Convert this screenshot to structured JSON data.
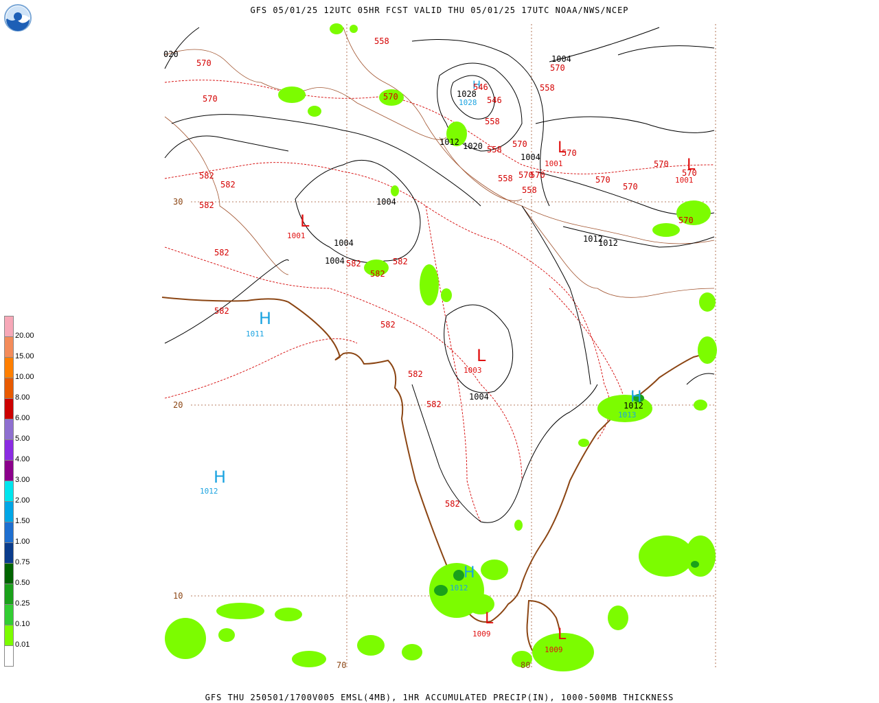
{
  "header": {
    "title": "GFS 05/01/25 12UTC 05HR FCST VALID THU 05/01/25 17UTC NOAA/NWS/NCEP",
    "logo_text": "NOAA"
  },
  "footer": {
    "text": "GFS THU 250501/1700V005 EMSL(4MB), 1HR ACCUMULATED PRECIP(IN), 1000-500MB THICKNESS"
  },
  "colors": {
    "coast": "#8b4513",
    "thickness": "#d40000",
    "pressure": "#000000",
    "high": "#1aa3e0",
    "low": "#e01010",
    "grid": "#a0522d",
    "precip_light": "#7cfc00"
  },
  "legend": {
    "levels": [
      {
        "label": "20.00",
        "color": "#f7a8b8"
      },
      {
        "label": "15.00",
        "color": "#f48c5a"
      },
      {
        "label": "10.00",
        "color": "#ff7f00"
      },
      {
        "label": "8.00",
        "color": "#e85a00"
      },
      {
        "label": "6.00",
        "color": "#cc0000"
      },
      {
        "label": "5.00",
        "color": "#8e6fd0"
      },
      {
        "label": "4.00",
        "color": "#8a2be2"
      },
      {
        "label": "3.00",
        "color": "#8b008b"
      },
      {
        "label": "2.00",
        "color": "#00e5ee"
      },
      {
        "label": "1.50",
        "color": "#00a6e6"
      },
      {
        "label": "1.00",
        "color": "#1e6fd0"
      },
      {
        "label": "0.75",
        "color": "#0a3c8c"
      },
      {
        "label": "0.50",
        "color": "#006400"
      },
      {
        "label": "0.25",
        "color": "#1aa11a"
      },
      {
        "label": "0.10",
        "color": "#32cd32"
      },
      {
        "label": "0.01",
        "color": "#7cfc00"
      },
      {
        "label": "",
        "color": "#ffffff"
      }
    ]
  },
  "grid_labels": {
    "lat": [
      "30",
      "20",
      "10"
    ],
    "lon": [
      "70",
      "80"
    ],
    "corner": "020"
  },
  "pressure_centers": [
    {
      "type": "H",
      "value": "1011"
    },
    {
      "type": "H",
      "value": "1012"
    },
    {
      "type": "H",
      "value": "1013"
    },
    {
      "type": "H",
      "value": "1012"
    },
    {
      "type": "H",
      "value": "1028"
    },
    {
      "type": "L",
      "value": "1001"
    },
    {
      "type": "L",
      "value": "1003"
    },
    {
      "type": "L",
      "value": "1001"
    },
    {
      "type": "L",
      "value": "1001"
    },
    {
      "type": "L",
      "value": "1009"
    },
    {
      "type": "L",
      "value": "1009"
    }
  ],
  "isobar_labels": [
    "1004",
    "1004",
    "1004",
    "1004",
    "1004",
    "1004",
    "1012",
    "1012",
    "1012",
    "1020",
    "1028",
    "1012",
    "1004"
  ],
  "thickness_labels": [
    "558",
    "570",
    "570",
    "570",
    "570",
    "546",
    "558",
    "558",
    "558",
    "558",
    "558",
    "570",
    "570",
    "570",
    "570",
    "570",
    "570",
    "570",
    "570",
    "582",
    "582",
    "582",
    "582",
    "582",
    "582",
    "582",
    "582",
    "582",
    "582",
    "582",
    "582",
    "582",
    "570",
    "546"
  ]
}
